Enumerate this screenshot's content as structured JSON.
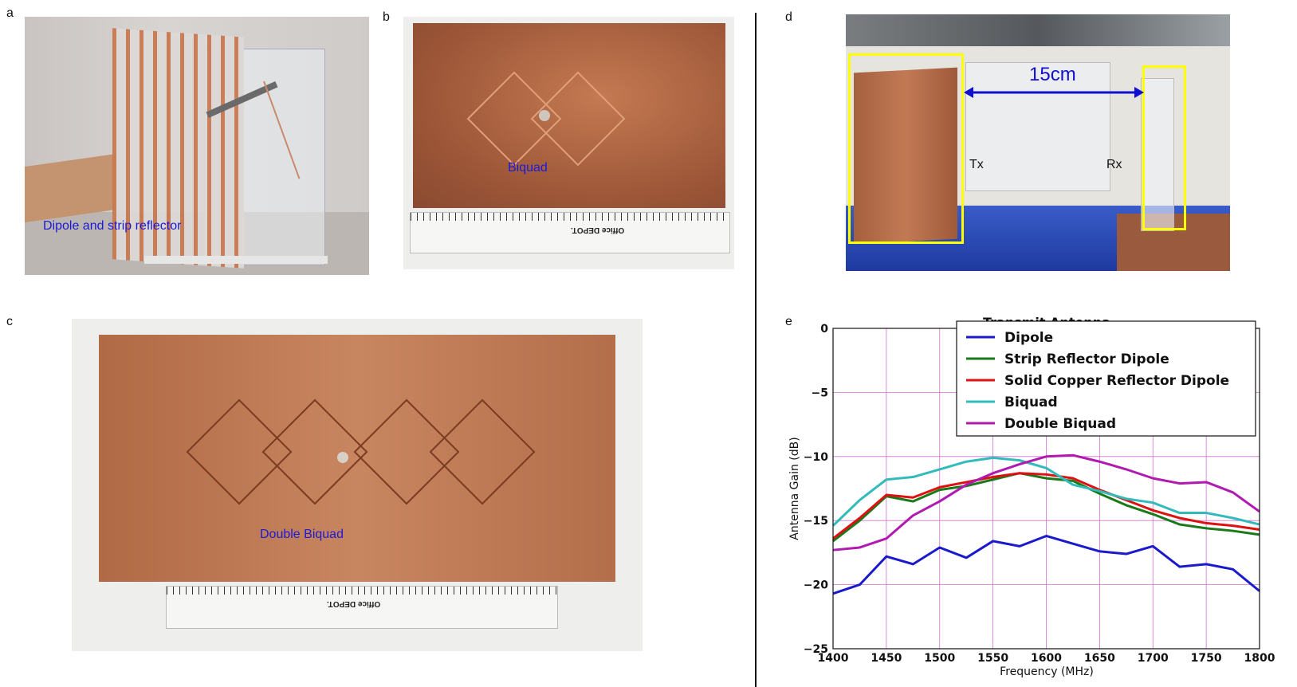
{
  "panels": {
    "a": {
      "letter": "a",
      "caption": "Dipole and strip reflector"
    },
    "b": {
      "letter": "b",
      "caption": "Biquad",
      "ruler_brand": "Office DEPOT."
    },
    "c": {
      "letter": "c",
      "caption": "Double Biquad",
      "ruler_brand": "Office DEPOT."
    },
    "d": {
      "letter": "d",
      "distance": "15cm",
      "tx": "Tx",
      "rx": "Rx"
    },
    "e": {
      "letter": "e"
    }
  },
  "colors": {
    "copper": "#b56a43",
    "caption_blue": "#1a1ad6",
    "highlight": "#ffff00",
    "arrow": "#1010d0",
    "grid": "#d070d0"
  },
  "chart_data": {
    "type": "line",
    "title": "Transmit Antenna",
    "xlabel": "Frequency (MHz)",
    "ylabel": "Antenna Gain (dB)",
    "xlim": [
      1400,
      1800
    ],
    "ylim": [
      -25,
      0
    ],
    "xticks": [
      1400,
      1450,
      1500,
      1550,
      1600,
      1650,
      1700,
      1750,
      1800
    ],
    "yticks": [
      0,
      -5,
      -10,
      -15,
      -20,
      -25
    ],
    "grid": true,
    "legend_position": "top-right",
    "x": [
      1400,
      1425,
      1450,
      1475,
      1500,
      1525,
      1550,
      1575,
      1600,
      1625,
      1650,
      1675,
      1700,
      1725,
      1750,
      1775,
      1800
    ],
    "series": [
      {
        "name": "Dipole",
        "color": "#1a1acc",
        "values": [
          -20.7,
          -20.0,
          -17.8,
          -18.4,
          -17.1,
          -17.9,
          -16.6,
          -17.0,
          -16.2,
          -16.8,
          -17.4,
          -17.6,
          -17.0,
          -18.6,
          -18.4,
          -18.8,
          -20.5
        ]
      },
      {
        "name": "Strip Reflector Dipole",
        "color": "#1a7a1a",
        "values": [
          -16.6,
          -15.0,
          -13.1,
          -13.5,
          -12.6,
          -12.3,
          -11.8,
          -11.3,
          -11.7,
          -11.9,
          -12.9,
          -13.8,
          -14.5,
          -15.3,
          -15.6,
          -15.8,
          -16.1
        ]
      },
      {
        "name": "Solid Copper Reflector Dipole",
        "color": "#dd1111",
        "values": [
          -16.4,
          -14.8,
          -13.0,
          -13.2,
          -12.4,
          -12.0,
          -11.6,
          -11.3,
          -11.4,
          -11.7,
          -12.6,
          -13.4,
          -14.2,
          -14.8,
          -15.2,
          -15.4,
          -15.7
        ]
      },
      {
        "name": "Biquad",
        "color": "#33bbbb",
        "values": [
          -15.4,
          -13.4,
          -11.8,
          -11.6,
          -11.0,
          -10.4,
          -10.1,
          -10.3,
          -10.9,
          -12.2,
          -12.7,
          -13.3,
          -13.6,
          -14.4,
          -14.4,
          -14.8,
          -15.3
        ]
      },
      {
        "name": "Double Biquad",
        "color": "#b01ab0",
        "values": [
          -17.3,
          -17.1,
          -16.4,
          -14.6,
          -13.5,
          -12.2,
          -11.3,
          -10.6,
          -10.0,
          -9.9,
          -10.4,
          -11.0,
          -11.7,
          -12.1,
          -12.0,
          -12.8,
          -14.3
        ]
      }
    ]
  }
}
